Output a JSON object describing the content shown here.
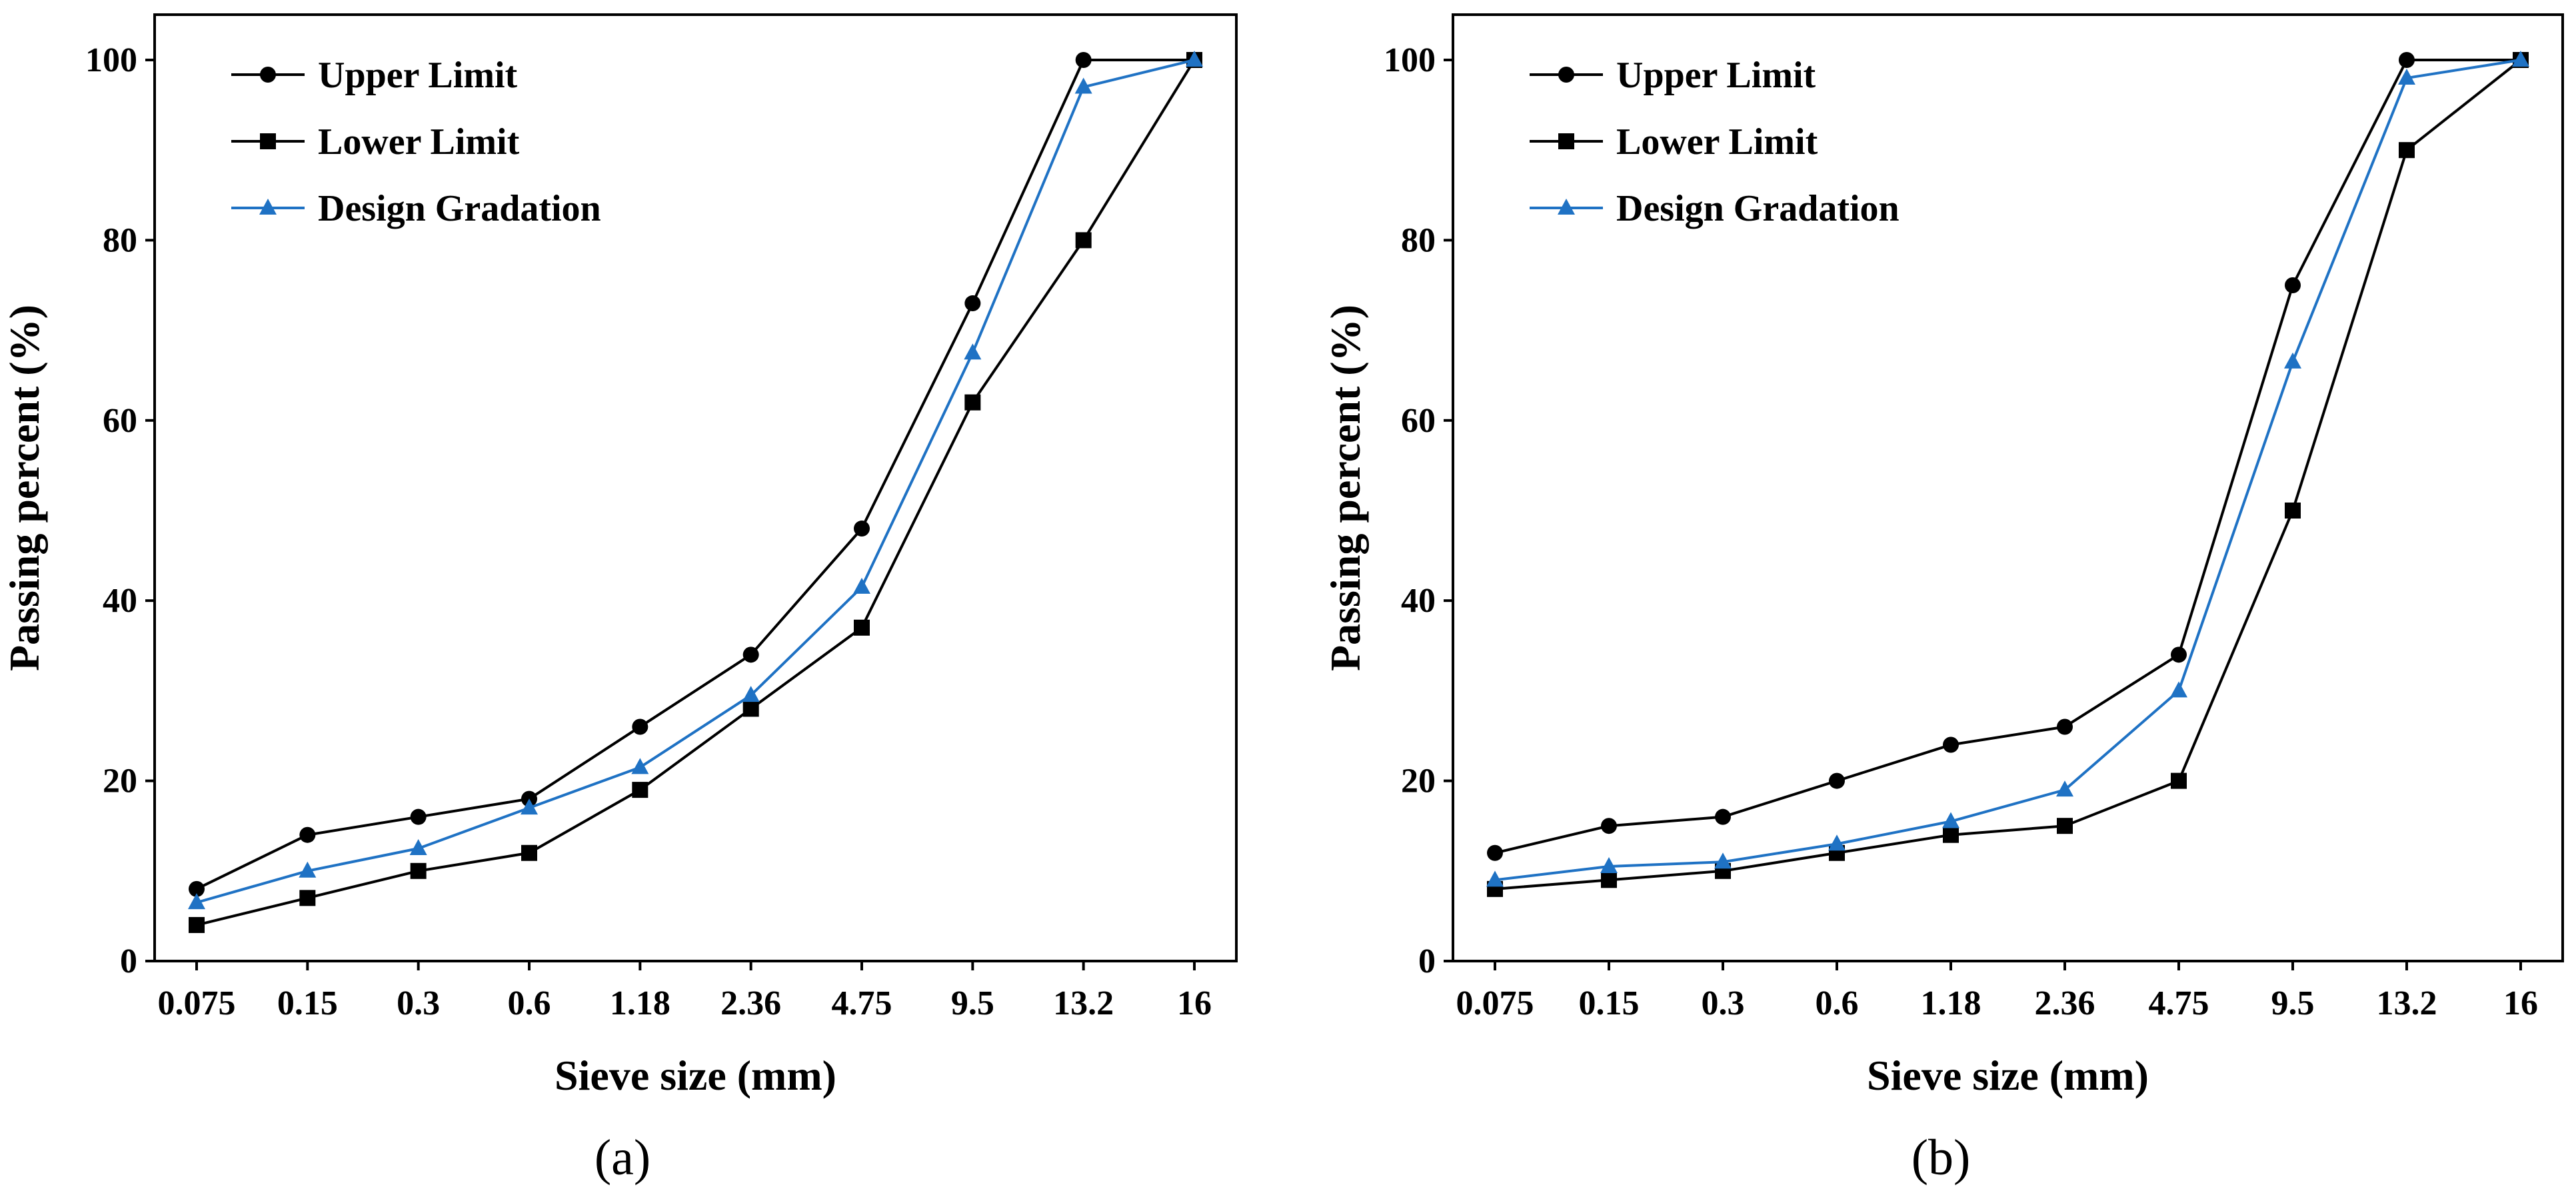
{
  "chart_data": [
    {
      "type": "line",
      "panel_label": "(a)",
      "xlabel": "Sieve size (mm)",
      "ylabel": "Passing percent (%)",
      "ylim": [
        0,
        100
      ],
      "yticks": [
        0,
        20,
        40,
        60,
        80,
        100
      ],
      "categories": [
        "0.075",
        "0.15",
        "0.3",
        "0.6",
        "1.18",
        "2.36",
        "4.75",
        "9.5",
        "13.2",
        "16"
      ],
      "legend_position": "top-left",
      "series": [
        {
          "name": "Upper Limit",
          "color": "#000000",
          "marker": "circle",
          "values": [
            8,
            14,
            16,
            18,
            26,
            34,
            48,
            73,
            100,
            100
          ]
        },
        {
          "name": "Lower Limit",
          "color": "#000000",
          "marker": "square",
          "values": [
            4,
            7,
            10,
            12,
            19,
            28,
            37,
            62,
            80,
            100
          ]
        },
        {
          "name": "Design Gradation",
          "color": "#1f72c4",
          "marker": "triangle",
          "values": [
            6.5,
            10,
            12.5,
            17,
            21.5,
            29.5,
            41.5,
            67.5,
            97,
            100
          ]
        }
      ]
    },
    {
      "type": "line",
      "panel_label": "(b)",
      "xlabel": "Sieve size (mm)",
      "ylabel": "Passing percent  (%)",
      "ylim": [
        0,
        100
      ],
      "yticks": [
        0,
        20,
        40,
        60,
        80,
        100
      ],
      "categories": [
        "0.075",
        "0.15",
        "0.3",
        "0.6",
        "1.18",
        "2.36",
        "4.75",
        "9.5",
        "13.2",
        "16"
      ],
      "legend_position": "top-left",
      "series": [
        {
          "name": "Upper Limit",
          "color": "#000000",
          "marker": "circle",
          "values": [
            12,
            15,
            16,
            20,
            24,
            26,
            34,
            75,
            100,
            100
          ]
        },
        {
          "name": "Lower Limit",
          "color": "#000000",
          "marker": "square",
          "values": [
            8,
            9,
            10,
            12,
            14,
            15,
            20,
            50,
            90,
            100
          ]
        },
        {
          "name": "Design Gradation",
          "color": "#1f72c4",
          "marker": "triangle",
          "values": [
            9,
            10.5,
            11,
            13,
            15.5,
            19,
            30,
            66.5,
            98,
            100
          ]
        }
      ]
    }
  ]
}
